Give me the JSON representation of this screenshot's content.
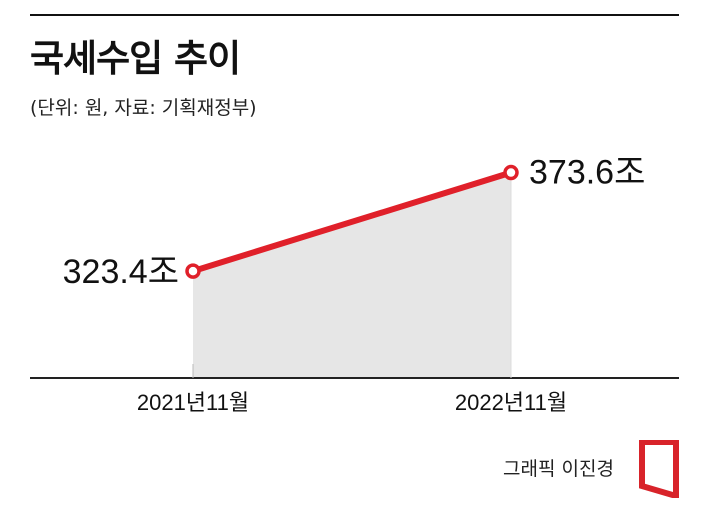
{
  "title": "국세수입 추이",
  "subtitle": "(단위: 원, 자료: 기획재정부)",
  "credit": "그래픽 이진경",
  "colors": {
    "line": "#e0202a",
    "area": "#e6e6e6",
    "axis": "#222222",
    "marker_fill": "#ffffff"
  },
  "chart_data": {
    "type": "line",
    "categories": [
      "2021년11월",
      "2022년11월"
    ],
    "series": [
      {
        "values": [
          323.4,
          373.6
        ],
        "labels": [
          "323.4조",
          "373.6조"
        ]
      }
    ],
    "title": "국세수입 추이",
    "xlabel": "",
    "ylabel": "",
    "unit": "조",
    "ylim": [
      273,
      380
    ],
    "grid": false,
    "area_fill": true
  }
}
